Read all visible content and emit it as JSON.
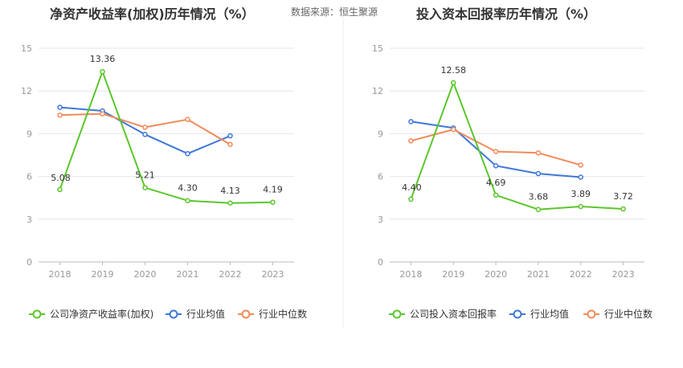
{
  "source_label": "数据来源：恒生聚源",
  "chart_data": [
    {
      "type": "line",
      "title": "净资产收益率(加权)历年情况（%）",
      "x": [
        "2018",
        "2019",
        "2020",
        "2021",
        "2022",
        "2023"
      ],
      "yticks": [
        "0",
        "3",
        "6",
        "9",
        "12",
        "15"
      ],
      "ylim": [
        0,
        15
      ],
      "grid": true,
      "legend": "bottom",
      "series": [
        {
          "name": "公司净资产收益率(加权)",
          "color": "#5cc62c",
          "values": [
            5.08,
            13.36,
            5.21,
            4.3,
            4.13,
            4.19
          ],
          "labels": [
            "5.08",
            "13.36",
            "5.21",
            "4.30",
            "4.13",
            "4.19"
          ]
        },
        {
          "name": "行业均值",
          "color": "#3e78d8",
          "values": [
            10.85,
            10.6,
            8.95,
            7.6,
            8.85,
            null
          ]
        },
        {
          "name": "行业中位数",
          "color": "#f08a5a",
          "values": [
            10.3,
            10.4,
            9.45,
            10.0,
            8.25,
            null
          ]
        }
      ]
    },
    {
      "type": "line",
      "title": "投入资本回报率历年情况（%）",
      "x": [
        "2018",
        "2019",
        "2020",
        "2021",
        "2022",
        "2023"
      ],
      "yticks": [
        "0",
        "3",
        "6",
        "9",
        "12",
        "15"
      ],
      "ylim": [
        0,
        15
      ],
      "grid": true,
      "legend": "bottom",
      "series": [
        {
          "name": "公司投入资本回报率",
          "color": "#5cc62c",
          "values": [
            4.4,
            12.58,
            4.69,
            3.68,
            3.89,
            3.72
          ],
          "labels": [
            "4.40",
            "12.58",
            "4.69",
            "3.68",
            "3.89",
            "3.72"
          ]
        },
        {
          "name": "行业均值",
          "color": "#3e78d8",
          "values": [
            9.85,
            9.4,
            6.75,
            6.2,
            5.95,
            null
          ]
        },
        {
          "name": "行业中位数",
          "color": "#f08a5a",
          "values": [
            8.5,
            9.3,
            7.75,
            7.65,
            6.8,
            null
          ]
        }
      ]
    }
  ]
}
